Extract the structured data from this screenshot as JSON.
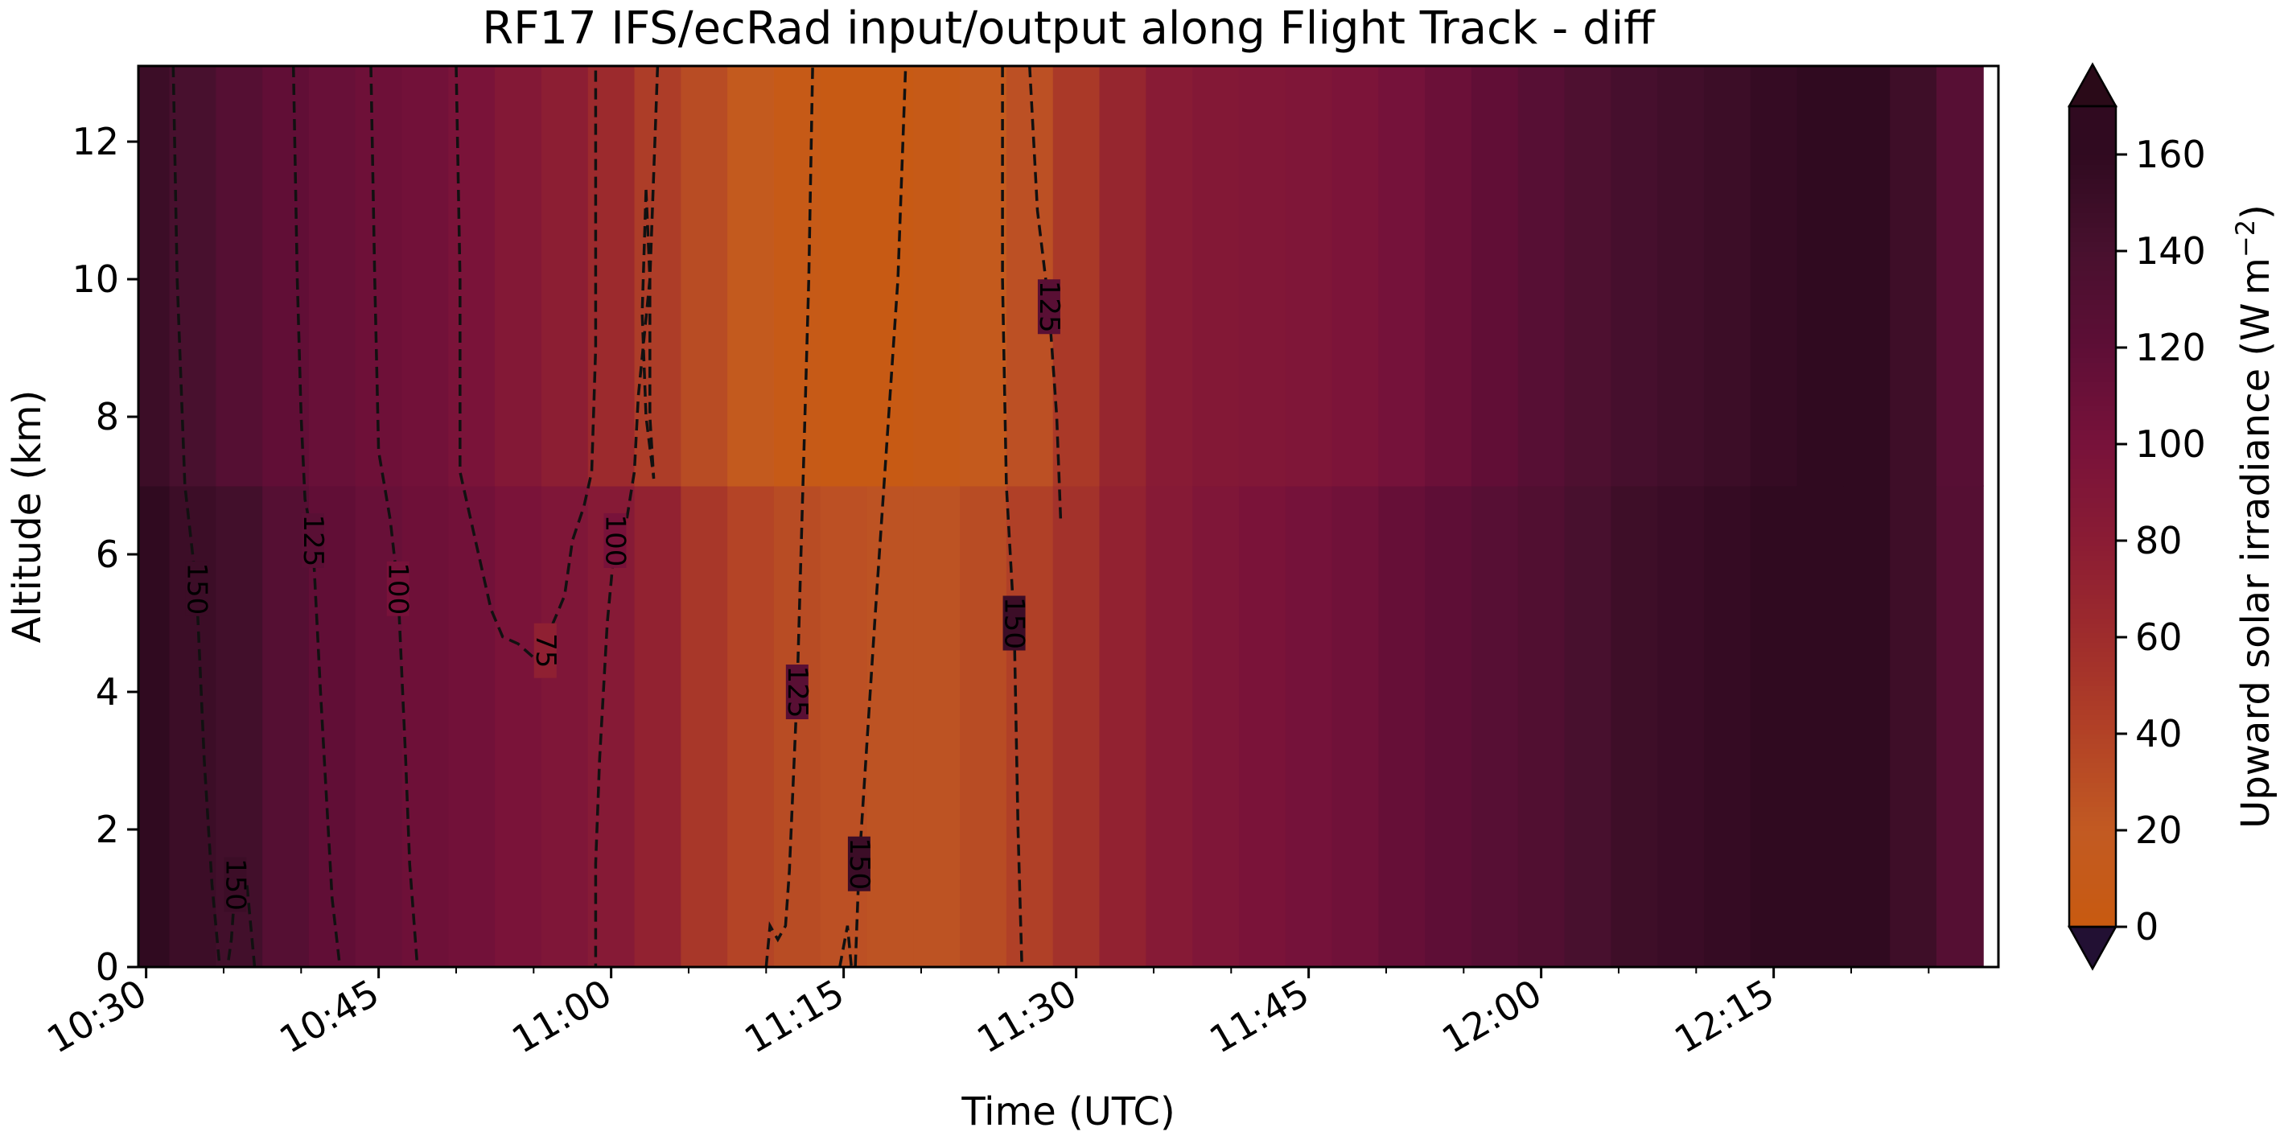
{
  "chart_data": {
    "type": "heatmap",
    "title": "RF17 IFS/ecRad input/output along Flight Track - diff",
    "xlabel": "Time (UTC)",
    "ylabel": "Altitude (km)",
    "colorbar_label": "Upward solar irradiance (W m",
    "colorbar_label_exp": "−2",
    "colorbar_label_end": ")",
    "xlim": [
      "10:29:30",
      "12:29:30"
    ],
    "ylim": [
      0,
      13.1
    ],
    "x_major_ticks": [
      "10:30",
      "10:45",
      "11:00",
      "11:15",
      "11:30",
      "11:45",
      "12:00",
      "12:15"
    ],
    "y_ticks": [
      0,
      2,
      4,
      6,
      8,
      10,
      12
    ],
    "colorbar": {
      "range": [
        0,
        170
      ],
      "ticks": [
        0,
        20,
        40,
        60,
        80,
        100,
        120,
        140,
        160
      ],
      "extend": "both",
      "under_color": "#221033",
      "over_color": "#2a0a18",
      "stops": [
        {
          "v": 0,
          "color": "#c85a10"
        },
        {
          "v": 20,
          "color": "#c25a22"
        },
        {
          "v": 40,
          "color": "#b24226"
        },
        {
          "v": 60,
          "color": "#9e2c2c"
        },
        {
          "v": 80,
          "color": "#8a1c34"
        },
        {
          "v": 100,
          "color": "#78123a"
        },
        {
          "v": 120,
          "color": "#5e0e36"
        },
        {
          "v": 140,
          "color": "#48102e"
        },
        {
          "v": 160,
          "color": "#300a20"
        }
      ]
    },
    "profile_times": [
      "10:30",
      "10:33",
      "10:36",
      "10:39",
      "10:42",
      "10:45",
      "10:48",
      "10:51",
      "10:54",
      "10:57",
      "11:00",
      "11:03",
      "11:06",
      "11:09",
      "11:12",
      "11:15",
      "11:18",
      "11:21",
      "11:24",
      "11:27",
      "11:30",
      "11:33",
      "11:36",
      "11:39",
      "11:42",
      "11:45",
      "11:48",
      "11:51",
      "11:54",
      "11:57",
      "12:00",
      "12:03",
      "12:06",
      "12:09",
      "12:12",
      "12:15",
      "12:18",
      "12:21",
      "12:24",
      "12:27"
    ],
    "values_at_surface": [
      160,
      150,
      145,
      128,
      118,
      112,
      108,
      105,
      98,
      92,
      85,
      72,
      50,
      38,
      32,
      28,
      26,
      26,
      32,
      42,
      55,
      72,
      85,
      92,
      98,
      102,
      106,
      114,
      120,
      126,
      132,
      140,
      148,
      152,
      156,
      160,
      165,
      168,
      148,
      128
    ],
    "values_aloft": [
      150,
      140,
      128,
      118,
      112,
      108,
      105,
      98,
      88,
      78,
      62,
      45,
      32,
      16,
      8,
      4,
      4,
      8,
      14,
      28,
      48,
      68,
      82,
      88,
      90,
      92,
      96,
      102,
      110,
      118,
      126,
      135,
      142,
      146,
      150,
      156,
      162,
      164,
      148,
      126
    ],
    "transition_altitude": 7,
    "contours": [
      {
        "level": 150,
        "label": "150",
        "points": [
          [
            "10:31:45",
            13.1
          ],
          [
            "10:32:00",
            10
          ],
          [
            "10:32:30",
            7
          ],
          [
            "10:33:15",
            5.5
          ],
          [
            "10:33:45",
            3
          ],
          [
            "10:34:15",
            1.2
          ],
          [
            "10:34:45",
            0
          ]
        ]
      },
      {
        "level": 150,
        "label": "150",
        "points": [
          [
            "10:37:00",
            0
          ],
          [
            "10:36:45",
            0.6
          ],
          [
            "10:36:30",
            1.2
          ],
          [
            "10:35:45",
            1.2
          ],
          [
            "10:35:30",
            0.4
          ],
          [
            "10:35:15",
            0
          ]
        ]
      },
      {
        "level": 125,
        "label": "125",
        "points": [
          [
            "10:39:30",
            13.1
          ],
          [
            "10:39:45",
            10
          ],
          [
            "10:40:00",
            8
          ],
          [
            "10:40:15",
            6.8
          ],
          [
            "10:40:45",
            6.2
          ],
          [
            "10:41:15",
            4
          ],
          [
            "10:41:45",
            2
          ],
          [
            "10:42:00",
            1
          ],
          [
            "10:42:30",
            0
          ]
        ]
      },
      {
        "level": 100,
        "label": "100",
        "points": [
          [
            "10:44:30",
            13.1
          ],
          [
            "10:44:45",
            10
          ],
          [
            "10:45:00",
            7.5
          ],
          [
            "10:45:45",
            6.5
          ],
          [
            "10:46:15",
            5.5
          ],
          [
            "10:46:45",
            3
          ],
          [
            "10:47:00",
            1.5
          ],
          [
            "10:47:30",
            0
          ]
        ]
      },
      {
        "level": 75,
        "label": "75",
        "points": [
          [
            "10:50:00",
            13.1
          ],
          [
            "10:50:15",
            10
          ],
          [
            "10:50:15",
            7.2
          ],
          [
            "10:51:15",
            6.2
          ],
          [
            "10:52:15",
            5.2
          ],
          [
            "10:53:00",
            4.8
          ],
          [
            "10:54:00",
            4.7
          ],
          [
            "10:55:00",
            4.5
          ],
          [
            "10:55:45",
            4.6
          ],
          [
            "10:56:15",
            5
          ],
          [
            "10:57:00",
            5.4
          ],
          [
            "10:57:30",
            6.2
          ],
          [
            "10:58:15",
            6.7
          ],
          [
            "10:58:45",
            7.2
          ],
          [
            "10:59:00",
            9
          ],
          [
            "10:59:00",
            13.1
          ]
        ]
      },
      {
        "level": 100,
        "label": "100",
        "points": [
          [
            "11:03:00",
            13.1
          ],
          [
            "11:02:30",
            10
          ],
          [
            "11:01:45",
            8.3
          ],
          [
            "11:01:30",
            7.2
          ],
          [
            "11:01:00",
            6.5
          ],
          [
            "11:00:15",
            6.2
          ],
          [
            "10:59:45",
            5
          ],
          [
            "10:59:15",
            3
          ],
          [
            "10:59:00",
            1.5
          ],
          [
            "10:59:00",
            0
          ]
        ]
      },
      {
        "level": 100,
        "label": "",
        "points": [
          [
            "11:02:15",
            11.3
          ],
          [
            "11:02:30",
            10
          ],
          [
            "11:02:30",
            8
          ],
          [
            "11:02:45",
            7.1
          ],
          [
            "11:02:15",
            8
          ],
          [
            "11:02:00",
            9.5
          ],
          [
            "11:02:15",
            11.3
          ]
        ]
      },
      {
        "level": 125,
        "label": "125",
        "points": [
          [
            "11:10:00",
            0
          ],
          [
            "11:10:15",
            0.6
          ],
          [
            "11:10:45",
            0.4
          ],
          [
            "11:11:15",
            0.6
          ],
          [
            "11:11:30",
            1.4
          ],
          [
            "11:12:00",
            4
          ],
          [
            "11:12:15",
            6
          ],
          [
            "11:12:30",
            8
          ],
          [
            "11:12:45",
            10
          ],
          [
            "11:13:00",
            13.1
          ]
        ]
      },
      {
        "level": 150,
        "label": "150",
        "points": [
          [
            "11:14:45",
            0
          ],
          [
            "11:15:15",
            0.6
          ],
          [
            "11:15:30",
            0
          ],
          [
            "11:15:45",
            0
          ],
          [
            "11:16:00",
            1.5
          ],
          [
            "11:17:00",
            5
          ],
          [
            "11:18:30",
            10
          ],
          [
            "11:19:00",
            13.1
          ]
        ]
      },
      {
        "level": 150,
        "label": "150",
        "points": [
          [
            "11:25:15",
            13.1
          ],
          [
            "11:25:15",
            10
          ],
          [
            "11:25:30",
            7
          ],
          [
            "11:26:00",
            5
          ],
          [
            "11:26:15",
            2
          ],
          [
            "11:26:30",
            0
          ]
        ]
      },
      {
        "level": 125,
        "label": "125",
        "points": [
          [
            "11:27:00",
            13.1
          ],
          [
            "11:27:30",
            11
          ],
          [
            "11:28:15",
            9.6
          ],
          [
            "11:28:45",
            8
          ],
          [
            "11:29:00",
            6.5
          ]
        ]
      }
    ]
  }
}
